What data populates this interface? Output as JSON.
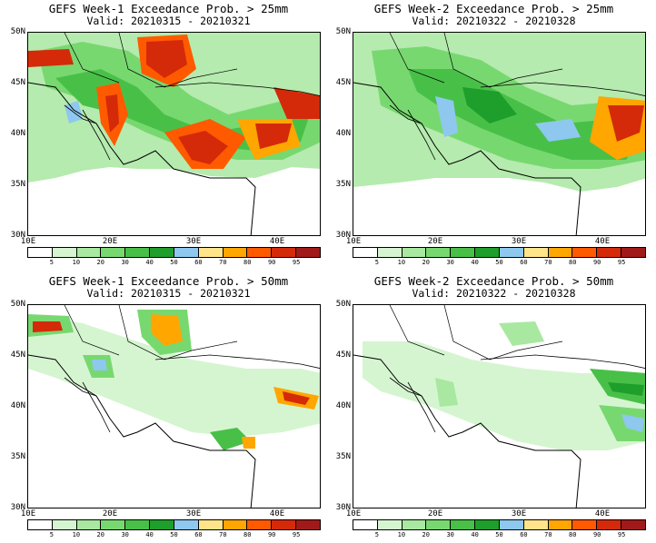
{
  "panels": [
    {
      "title": "GEFS Week-1 Exceedance Prob. > 25mm",
      "valid": "Valid: 20210315 - 20210321"
    },
    {
      "title": "GEFS Week-2 Exceedance Prob. > 25mm",
      "valid": "Valid: 20210322 - 20210328"
    },
    {
      "title": "GEFS Week-1 Exceedance Prob. > 50mm",
      "valid": "Valid: 20210315 - 20210321"
    },
    {
      "title": "GEFS Week-2 Exceedance Prob. > 50mm",
      "valid": "Valid: 20210322 - 20210328"
    }
  ],
  "axes": {
    "y_ticks": [
      "50N",
      "45N",
      "40N",
      "35N",
      "30N"
    ],
    "x_ticks": [
      "10E",
      "20E",
      "30E",
      "40E"
    ]
  },
  "colorbar": {
    "colors": [
      "#ffffff",
      "#d5f5d0",
      "#a8e8a0",
      "#78d870",
      "#48c048",
      "#1e9e2a",
      "#8ec8ee",
      "#ffe48a",
      "#ffa600",
      "#ff5a00",
      "#d42a0a",
      "#a01a1a"
    ],
    "labels": [
      "5",
      "10",
      "20",
      "30",
      "40",
      "50",
      "60",
      "70",
      "80",
      "90",
      "95"
    ]
  }
}
